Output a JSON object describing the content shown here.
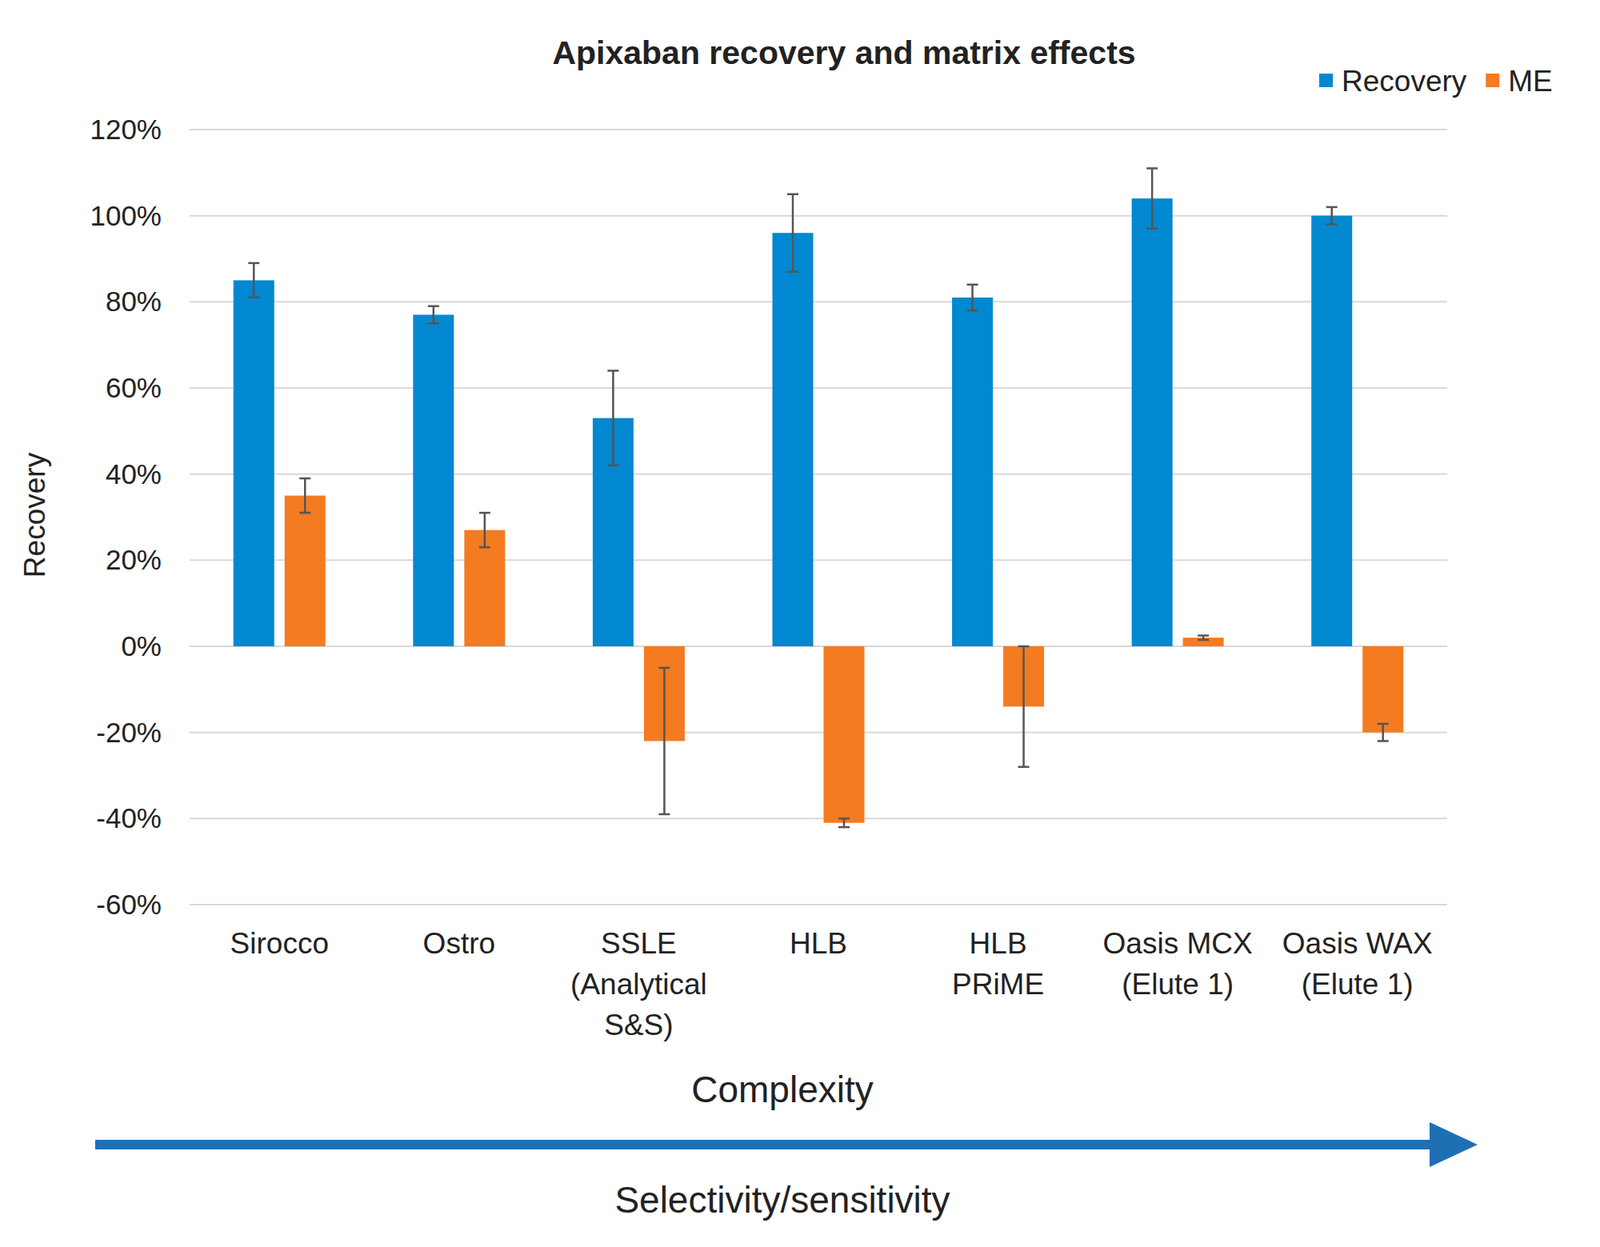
{
  "chart_data": {
    "type": "bar",
    "title": "Apixaban recovery and matrix effects",
    "ylabel": "Recovery",
    "xlabel": "Complexity",
    "annotations": [
      "Selectivity/sensitivity"
    ],
    "categories": [
      "Sirocco",
      "Ostro",
      "SSLE\n(Analytical\nS&S)",
      "HLB",
      "HLB\nPRiME",
      "Oasis MCX\n(Elute 1)",
      "Oasis WAX\n(Elute 1)"
    ],
    "series": [
      {
        "name": "Recovery",
        "color": "#0288d1",
        "values": [
          85,
          77,
          53,
          96,
          81,
          104,
          100
        ],
        "errors": [
          4,
          2,
          11,
          9,
          3,
          7,
          2
        ]
      },
      {
        "name": "ME",
        "color": "#f47b20",
        "values": [
          35,
          27,
          -22,
          -41,
          -14,
          2,
          -20
        ],
        "errors": [
          4,
          4,
          17,
          1,
          14,
          0.5,
          2
        ]
      }
    ],
    "ylim": [
      -60,
      120
    ],
    "yticks": [
      {
        "value": -60,
        "label": "-60%"
      },
      {
        "value": -40,
        "label": "-40%"
      },
      {
        "value": -20,
        "label": "-20%"
      },
      {
        "value": 0,
        "label": "0%"
      },
      {
        "value": 20,
        "label": "20%"
      },
      {
        "value": 40,
        "label": "40%"
      },
      {
        "value": 60,
        "label": "60%"
      },
      {
        "value": 80,
        "label": "80%"
      },
      {
        "value": 100,
        "label": "100%"
      },
      {
        "value": 120,
        "label": "120%"
      }
    ],
    "grid": true,
    "legend": "top-right"
  }
}
